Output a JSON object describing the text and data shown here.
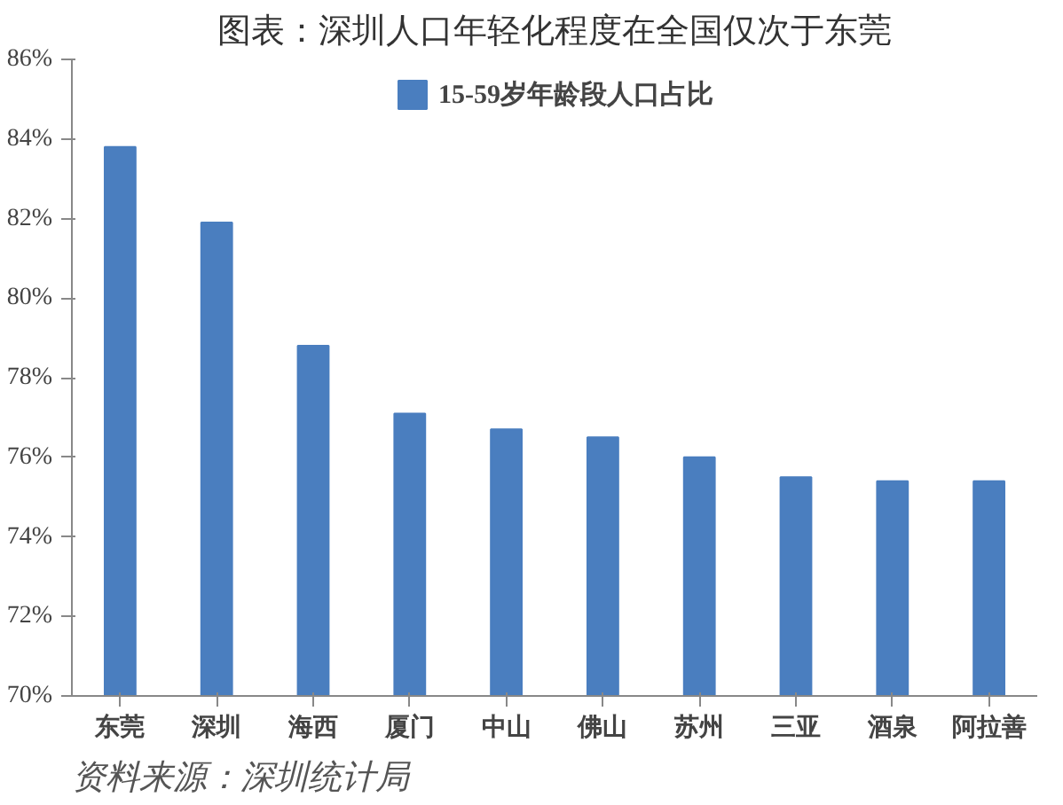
{
  "chart_data": {
    "type": "bar",
    "title": "图表：深圳人口年轻化程度在全国仅次于东莞",
    "categories": [
      "东莞",
      "深圳",
      "海西",
      "厦门",
      "中山",
      "佛山",
      "苏州",
      "三亚",
      "酒泉",
      "阿拉善"
    ],
    "series": [
      {
        "name": "15-59岁年龄段人口占比",
        "color": "#4a7ebf",
        "values": [
          83.8,
          81.9,
          78.8,
          77.1,
          76.7,
          76.5,
          76.0,
          75.5,
          75.4,
          75.4
        ]
      }
    ],
    "ylim": [
      70,
      86
    ],
    "yticks": [
      {
        "value": 70,
        "label": "70%"
      },
      {
        "value": 72,
        "label": "72%"
      },
      {
        "value": 74,
        "label": "74%"
      },
      {
        "value": 76,
        "label": "76%"
      },
      {
        "value": 78,
        "label": "78%"
      },
      {
        "value": 80,
        "label": "80%"
      },
      {
        "value": 82,
        "label": "82%"
      },
      {
        "value": 84,
        "label": "84%"
      },
      {
        "value": 86,
        "label": "86%"
      }
    ],
    "grid": false,
    "legend": "top",
    "annotations": [
      "资料来源：深圳统计局"
    ]
  }
}
